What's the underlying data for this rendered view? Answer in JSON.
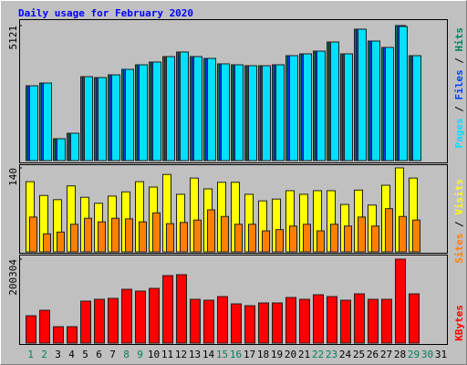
{
  "chart_data": [
    {
      "type": "bar",
      "title": "Daily usage for February 2020",
      "title_color": "#0000ff",
      "ylim": [
        0,
        5121
      ],
      "yticks": [
        5121
      ],
      "legend_separator": "/",
      "series": [
        {
          "name": "Hits",
          "color": "#00805c",
          "values": [
            2837,
            2941,
            830,
            1038,
            3183,
            3149,
            3252,
            3460,
            3633,
            3737,
            3945,
            4118,
            3945,
            3875,
            3668,
            3633,
            3598,
            3598,
            3633,
            3979,
            4048,
            4152,
            4498,
            4048,
            4983,
            4533,
            4291,
            5121,
            3979,
            null,
            null
          ]
        },
        {
          "name": "Files",
          "color": "#0040ff",
          "values": [
            2837,
            2941,
            830,
            1038,
            3183,
            3149,
            3252,
            3460,
            3633,
            3737,
            3945,
            4118,
            3945,
            3875,
            3668,
            3633,
            3598,
            3598,
            3633,
            3979,
            4048,
            4152,
            4498,
            4048,
            4983,
            4533,
            4291,
            5121,
            3979,
            null,
            null
          ]
        },
        {
          "name": "Pages",
          "color": "#00e0ff",
          "values": [
            2837,
            2941,
            830,
            1038,
            3183,
            3149,
            3252,
            3460,
            3633,
            3737,
            3945,
            4118,
            3945,
            3875,
            3668,
            3633,
            3598,
            3598,
            3633,
            3979,
            4048,
            4152,
            4498,
            4048,
            4983,
            4533,
            4291,
            5086,
            3979,
            null,
            null
          ]
        }
      ]
    },
    {
      "type": "bar",
      "ylim": [
        0,
        140
      ],
      "yticks": [
        140
      ],
      "legend_separator": "/",
      "series": [
        {
          "name": "Visits",
          "color": "#ffff00",
          "values": [
            117,
            94,
            87,
            110,
            91,
            81,
            93,
            100,
            117,
            108,
            129,
            96,
            123,
            105,
            116,
            116,
            96,
            85,
            88,
            102,
            96,
            102,
            102,
            79,
            103,
            78,
            111,
            140,
            123,
            null,
            null
          ]
        },
        {
          "name": "Sites",
          "color": "#ff8000",
          "values": [
            58,
            30,
            33,
            46,
            56,
            50,
            56,
            55,
            50,
            65,
            47,
            49,
            53,
            70,
            59,
            46,
            46,
            35,
            37,
            43,
            46,
            35,
            46,
            43,
            58,
            43,
            72,
            59,
            53,
            null,
            null
          ]
        }
      ]
    },
    {
      "type": "bar",
      "ylim": [
        0,
        200304
      ],
      "yticks": [
        200304
      ],
      "categories": [
        "1",
        "2",
        "3",
        "4",
        "5",
        "6",
        "7",
        "8",
        "9",
        "10",
        "11",
        "12",
        "13",
        "14",
        "15",
        "16",
        "17",
        "18",
        "19",
        "20",
        "21",
        "22",
        "23",
        "24",
        "25",
        "26",
        "27",
        "28",
        "29",
        "30",
        "31"
      ],
      "category_colors": [
        "#00805c",
        "#00805c",
        "#000000",
        "#000000",
        "#000000",
        "#000000",
        "#000000",
        "#00805c",
        "#00805c",
        "#000000",
        "#000000",
        "#000000",
        "#000000",
        "#000000",
        "#00805c",
        "#00805c",
        "#000000",
        "#000000",
        "#000000",
        "#000000",
        "#000000",
        "#00805c",
        "#00805c",
        "#000000",
        "#000000",
        "#000000",
        "#000000",
        "#000000",
        "#00805c",
        "#00805c",
        "#000000"
      ],
      "series": [
        {
          "name": "KBytes",
          "color": "#ff0000",
          "values": [
            65316,
            78372,
            39188,
            39188,
            100152,
            104506,
            106683,
            128455,
            124100,
            130633,
            161114,
            163291,
            104506,
            102329,
            111038,
            93620,
            89266,
            95797,
            95797,
            108861,
            104506,
            115392,
            111038,
            102329,
            117574,
            104506,
            104506,
            200304,
            117574,
            null,
            null
          ]
        }
      ]
    }
  ]
}
